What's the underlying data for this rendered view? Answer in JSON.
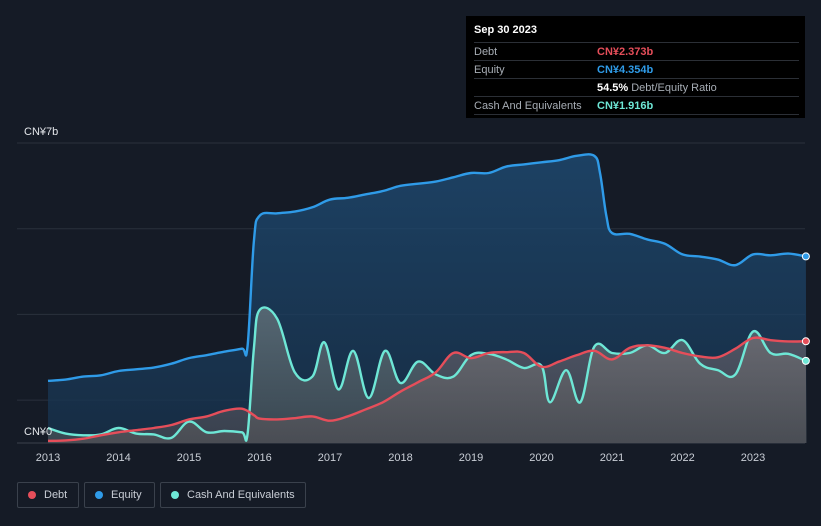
{
  "tooltip": {
    "date": "Sep 30 2023",
    "rows": [
      {
        "label": "Debt",
        "value": "CN¥2.373b",
        "color": "#e64e5a"
      },
      {
        "label": "Equity",
        "value": "CN¥4.354b",
        "color": "#2f9be8"
      },
      {
        "label": "",
        "value": "54.5%",
        "sub": "Debt/Equity Ratio",
        "color": "#ffffff"
      },
      {
        "label": "Cash And Equivalents",
        "value": "CN¥1.916b",
        "color": "#6ee7d6"
      }
    ]
  },
  "legend": [
    {
      "label": "Debt",
      "color": "#e64e5a"
    },
    {
      "label": "Equity",
      "color": "#2f9be8"
    },
    {
      "label": "Cash And Equivalents",
      "color": "#6ee7d6"
    }
  ],
  "chart_data": {
    "type": "area",
    "y_unit": "CN¥ billions",
    "ylim": [
      0,
      7
    ],
    "y_tick_labels": [
      {
        "value": 7,
        "label": "CN¥7b"
      },
      {
        "value": 0,
        "label": "CN¥0"
      }
    ],
    "xlim": [
      2013.0,
      2023.75
    ],
    "x_ticks": [
      2013,
      2014,
      2015,
      2016,
      2017,
      2018,
      2019,
      2020,
      2021,
      2022,
      2023
    ],
    "grid": true,
    "legend_position": "bottom-left",
    "series": [
      {
        "name": "Equity",
        "color": "#2f9be8",
        "points": [
          [
            2013.0,
            1.45
          ],
          [
            2013.25,
            1.48
          ],
          [
            2013.5,
            1.55
          ],
          [
            2013.75,
            1.58
          ],
          [
            2014.0,
            1.68
          ],
          [
            2014.25,
            1.72
          ],
          [
            2014.5,
            1.76
          ],
          [
            2014.75,
            1.85
          ],
          [
            2015.0,
            1.98
          ],
          [
            2015.25,
            2.05
          ],
          [
            2015.5,
            2.13
          ],
          [
            2015.75,
            2.2
          ],
          [
            2015.83,
            2.25
          ],
          [
            2015.92,
            4.7
          ],
          [
            2016.0,
            5.3
          ],
          [
            2016.25,
            5.36
          ],
          [
            2016.5,
            5.4
          ],
          [
            2016.75,
            5.5
          ],
          [
            2017.0,
            5.68
          ],
          [
            2017.25,
            5.72
          ],
          [
            2017.5,
            5.8
          ],
          [
            2017.75,
            5.88
          ],
          [
            2018.0,
            6.0
          ],
          [
            2018.25,
            6.05
          ],
          [
            2018.5,
            6.1
          ],
          [
            2018.75,
            6.2
          ],
          [
            2019.0,
            6.3
          ],
          [
            2019.25,
            6.3
          ],
          [
            2019.5,
            6.45
          ],
          [
            2019.75,
            6.5
          ],
          [
            2020.0,
            6.55
          ],
          [
            2020.25,
            6.6
          ],
          [
            2020.5,
            6.7
          ],
          [
            2020.75,
            6.7
          ],
          [
            2020.83,
            6.3
          ],
          [
            2020.92,
            5.3
          ],
          [
            2021.0,
            4.9
          ],
          [
            2021.25,
            4.88
          ],
          [
            2021.5,
            4.75
          ],
          [
            2021.75,
            4.65
          ],
          [
            2022.0,
            4.4
          ],
          [
            2022.25,
            4.35
          ],
          [
            2022.5,
            4.28
          ],
          [
            2022.75,
            4.15
          ],
          [
            2023.0,
            4.4
          ],
          [
            2023.25,
            4.38
          ],
          [
            2023.5,
            4.42
          ],
          [
            2023.75,
            4.354
          ]
        ]
      },
      {
        "name": "Cash And Equivalents",
        "color": "#6ee7d6",
        "points": [
          [
            2013.0,
            0.35
          ],
          [
            2013.25,
            0.22
          ],
          [
            2013.5,
            0.18
          ],
          [
            2013.75,
            0.2
          ],
          [
            2014.0,
            0.35
          ],
          [
            2014.25,
            0.22
          ],
          [
            2014.5,
            0.2
          ],
          [
            2014.75,
            0.12
          ],
          [
            2015.0,
            0.5
          ],
          [
            2015.25,
            0.25
          ],
          [
            2015.5,
            0.28
          ],
          [
            2015.75,
            0.25
          ],
          [
            2015.83,
            0.2
          ],
          [
            2015.92,
            2.2
          ],
          [
            2016.0,
            3.1
          ],
          [
            2016.25,
            2.9
          ],
          [
            2016.5,
            1.65
          ],
          [
            2016.75,
            1.55
          ],
          [
            2016.92,
            2.35
          ],
          [
            2017.12,
            1.25
          ],
          [
            2017.33,
            2.15
          ],
          [
            2017.55,
            1.05
          ],
          [
            2017.78,
            2.15
          ],
          [
            2018.0,
            1.4
          ],
          [
            2018.25,
            1.9
          ],
          [
            2018.5,
            1.6
          ],
          [
            2018.75,
            1.55
          ],
          [
            2019.0,
            2.05
          ],
          [
            2019.25,
            2.08
          ],
          [
            2019.5,
            1.95
          ],
          [
            2019.75,
            1.75
          ],
          [
            2020.0,
            1.8
          ],
          [
            2020.12,
            0.95
          ],
          [
            2020.35,
            1.7
          ],
          [
            2020.55,
            0.95
          ],
          [
            2020.75,
            2.25
          ],
          [
            2021.0,
            2.1
          ],
          [
            2021.25,
            2.1
          ],
          [
            2021.5,
            2.28
          ],
          [
            2021.75,
            2.1
          ],
          [
            2022.0,
            2.4
          ],
          [
            2022.25,
            1.85
          ],
          [
            2022.5,
            1.7
          ],
          [
            2022.75,
            1.6
          ],
          [
            2023.0,
            2.6
          ],
          [
            2023.25,
            2.1
          ],
          [
            2023.5,
            2.08
          ],
          [
            2023.75,
            1.916
          ]
        ]
      },
      {
        "name": "Debt",
        "color": "#e64e5a",
        "points": [
          [
            2013.0,
            0.05
          ],
          [
            2013.25,
            0.06
          ],
          [
            2013.5,
            0.1
          ],
          [
            2013.75,
            0.18
          ],
          [
            2014.0,
            0.25
          ],
          [
            2014.25,
            0.3
          ],
          [
            2014.5,
            0.35
          ],
          [
            2014.75,
            0.42
          ],
          [
            2015.0,
            0.55
          ],
          [
            2015.25,
            0.62
          ],
          [
            2015.5,
            0.75
          ],
          [
            2015.75,
            0.8
          ],
          [
            2015.92,
            0.65
          ],
          [
            2016.0,
            0.57
          ],
          [
            2016.25,
            0.55
          ],
          [
            2016.5,
            0.58
          ],
          [
            2016.75,
            0.62
          ],
          [
            2017.0,
            0.52
          ],
          [
            2017.25,
            0.62
          ],
          [
            2017.5,
            0.78
          ],
          [
            2017.75,
            0.95
          ],
          [
            2018.0,
            1.2
          ],
          [
            2018.25,
            1.42
          ],
          [
            2018.5,
            1.65
          ],
          [
            2018.75,
            2.1
          ],
          [
            2019.0,
            1.98
          ],
          [
            2019.25,
            2.1
          ],
          [
            2019.5,
            2.12
          ],
          [
            2019.75,
            2.1
          ],
          [
            2020.0,
            1.78
          ],
          [
            2020.25,
            1.9
          ],
          [
            2020.5,
            2.05
          ],
          [
            2020.75,
            2.15
          ],
          [
            2021.0,
            1.95
          ],
          [
            2021.25,
            2.22
          ],
          [
            2021.5,
            2.28
          ],
          [
            2021.75,
            2.22
          ],
          [
            2022.0,
            2.1
          ],
          [
            2022.25,
            2.02
          ],
          [
            2022.5,
            2.0
          ],
          [
            2022.75,
            2.2
          ],
          [
            2023.0,
            2.45
          ],
          [
            2023.25,
            2.4
          ],
          [
            2023.5,
            2.37
          ],
          [
            2023.75,
            2.373
          ]
        ]
      }
    ]
  }
}
